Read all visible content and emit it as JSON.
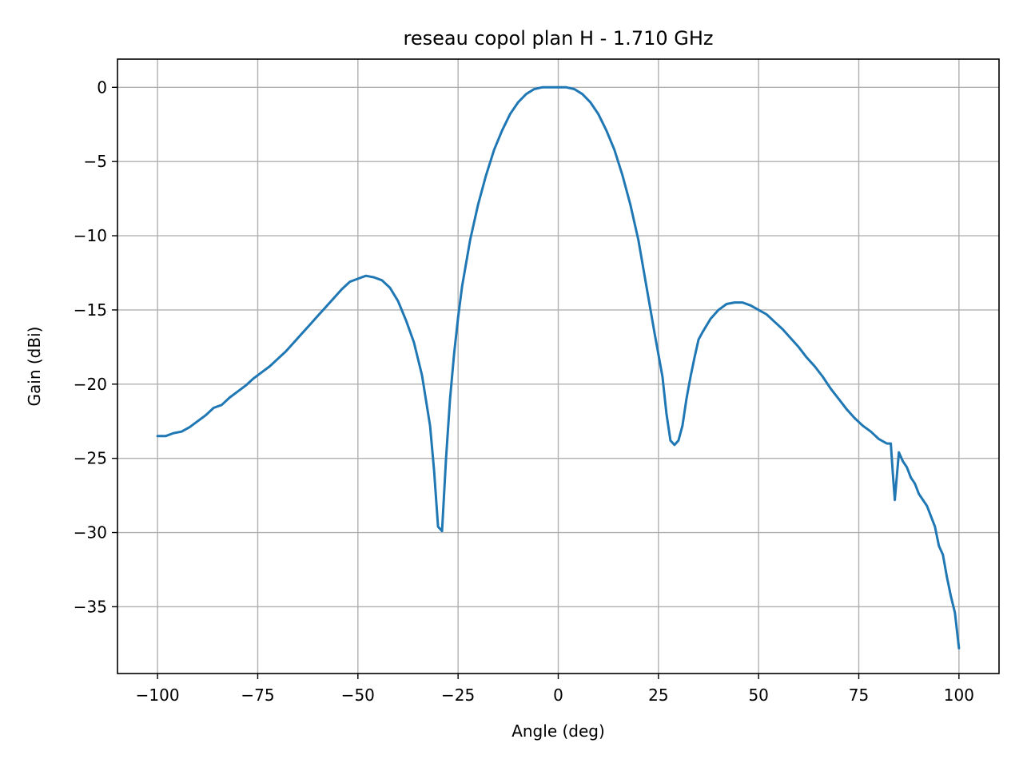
{
  "chart_data": {
    "type": "line",
    "title": "reseau copol plan H - 1.710 GHz",
    "xlabel": "Angle (deg)",
    "ylabel": "Gain (dBi)",
    "xlim": [
      -110,
      110
    ],
    "ylim": [
      -39.5,
      1.9
    ],
    "xticks": [
      -100,
      -75,
      -50,
      -25,
      0,
      25,
      50,
      75,
      100
    ],
    "xtick_labels": [
      "−100",
      "−75",
      "−50",
      "−25",
      "0",
      "25",
      "50",
      "75",
      "100"
    ],
    "yticks": [
      0,
      -5,
      -10,
      -15,
      -20,
      -25,
      -30,
      -35
    ],
    "ytick_labels": [
      "0",
      "−5",
      "−10",
      "−15",
      "−20",
      "−25",
      "−30",
      "−35"
    ],
    "grid": true,
    "series": [
      {
        "color": "#1f77b4",
        "x": [
          -100,
          -98,
          -96,
          -94,
          -92,
          -90,
          -88,
          -86,
          -84,
          -82,
          -80,
          -78,
          -76,
          -74,
          -72,
          -70,
          -68,
          -66,
          -64,
          -62,
          -60,
          -58,
          -56,
          -54,
          -52,
          -50,
          -48,
          -46,
          -44,
          -42,
          -40,
          -38,
          -36,
          -34,
          -32,
          -31,
          -30,
          -29,
          -28,
          -27,
          -26,
          -25,
          -24,
          -22,
          -20,
          -18,
          -16,
          -14,
          -12,
          -10,
          -8,
          -6,
          -4,
          -2,
          0,
          2,
          4,
          6,
          8,
          10,
          12,
          14,
          16,
          18,
          20,
          22,
          24,
          26,
          27,
          28,
          29,
          30,
          31,
          32,
          33,
          34,
          35,
          36,
          38,
          40,
          42,
          44,
          46,
          48,
          50,
          52,
          54,
          56,
          58,
          60,
          62,
          64,
          66,
          68,
          70,
          72,
          74,
          76,
          78,
          80,
          82,
          83,
          83.5,
          84,
          85,
          86,
          87,
          88,
          89,
          90,
          92,
          94,
          95,
          96,
          97,
          98,
          99,
          100
        ],
        "y": [
          -23.5,
          -23.5,
          -23.3,
          -23.2,
          -22.9,
          -22.5,
          -22.1,
          -21.6,
          -21.4,
          -20.9,
          -20.5,
          -20.1,
          -19.6,
          -19.2,
          -18.8,
          -18.3,
          -17.8,
          -17.2,
          -16.6,
          -16.0,
          -15.4,
          -14.8,
          -14.2,
          -13.6,
          -13.1,
          -12.9,
          -12.7,
          -12.8,
          -13.0,
          -13.5,
          -14.4,
          -15.7,
          -17.2,
          -19.4,
          -22.8,
          -25.8,
          -29.6,
          -29.9,
          -25.0,
          -21.0,
          -18.0,
          -15.5,
          -13.4,
          -10.3,
          -7.9,
          -5.9,
          -4.2,
          -2.9,
          -1.8,
          -1.0,
          -0.45,
          -0.12,
          0.0,
          0.0,
          0.0,
          0.0,
          -0.12,
          -0.45,
          -1.0,
          -1.8,
          -2.9,
          -4.2,
          -5.9,
          -7.9,
          -10.3,
          -13.4,
          -16.5,
          -19.5,
          -22.0,
          -23.8,
          -24.1,
          -23.8,
          -22.8,
          -21.0,
          -19.5,
          -18.2,
          -17.0,
          -16.5,
          -15.6,
          -15.0,
          -14.6,
          -14.5,
          -14.5,
          -14.7,
          -15.0,
          -15.3,
          -15.8,
          -16.3,
          -16.9,
          -17.5,
          -18.2,
          -18.8,
          -19.5,
          -20.3,
          -21.0,
          -21.7,
          -22.3,
          -22.8,
          -23.2,
          -23.7,
          -24.0,
          -24.0,
          -26.0,
          -27.8,
          -24.6,
          -25.2,
          -25.6,
          -26.3,
          -26.7,
          -27.4,
          -28.2,
          -29.6,
          -30.9,
          -31.5,
          -33.0,
          -34.3,
          -35.4,
          -37.8
        ]
      }
    ]
  }
}
